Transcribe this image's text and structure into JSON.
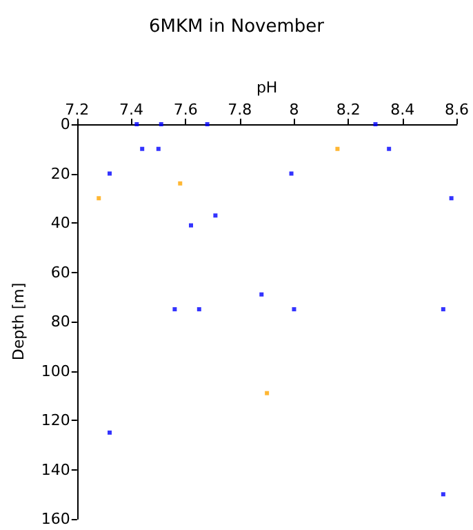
{
  "chart_data": {
    "type": "scatter",
    "title": "6MKM in November",
    "xlabel": "pH",
    "ylabel": "Depth [m]",
    "marker": "square",
    "xlim": [
      7.2,
      8.6
    ],
    "xticks": [
      7.2,
      7.4,
      7.6,
      7.8,
      8,
      8.2,
      8.4,
      8.6
    ],
    "ylim": [
      160,
      0
    ],
    "yticks": [
      0,
      20,
      40,
      60,
      80,
      100,
      120,
      140,
      160
    ],
    "series": [
      {
        "color": "#0000ff",
        "x": [
          7.42,
          7.51,
          7.68,
          8.3,
          7.44,
          7.5,
          8.35,
          7.32,
          7.99,
          8.58,
          7.71,
          7.62,
          7.56,
          7.65,
          7.88,
          8.0,
          8.55,
          7.32,
          8.55
        ],
        "values": [
          0,
          0,
          0,
          0,
          10,
          10,
          10,
          20,
          20,
          30,
          37,
          41,
          75,
          75,
          69,
          75,
          75,
          125,
          150
        ]
      },
      {
        "color": "#ffa500",
        "x": [
          8.16,
          7.58,
          7.28,
          7.9
        ],
        "values": [
          10,
          24,
          30,
          109
        ]
      }
    ]
  }
}
